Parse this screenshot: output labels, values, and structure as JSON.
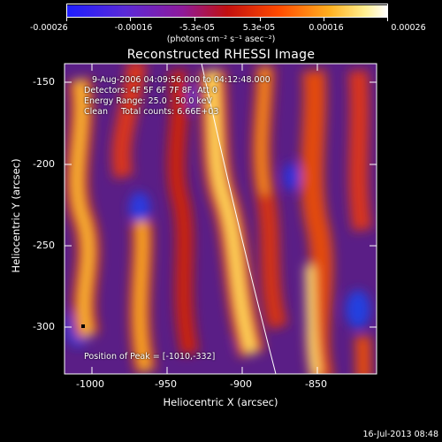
{
  "colorbar": {
    "ticks": [
      "-0.00026",
      "-0.00016",
      "-5.3e-05",
      "5.3e-05",
      "0.00016",
      "0.00026"
    ],
    "units": "(photons cm⁻² s⁻¹ asec⁻²)",
    "colors": [
      "#1a1aff",
      "#6633cc",
      "#991199",
      "#cc2200",
      "#ff6600",
      "#ffcc33",
      "#ffffff"
    ]
  },
  "title": "Reconstructed RHESSI Image",
  "info": {
    "time": "9-Aug-2006 04:09:56.000 to 04:12:48.000",
    "detectors": "Detectors: 4F 5F 6F 7F 8F, Att 0",
    "energy": "Energy Range: 25.0 - 50.0 keV",
    "clean": "Clean     Total counts: 6.66E+03"
  },
  "peak": "Position of Peak = [-1010,-332]",
  "axes": {
    "xlabel": "Heliocentric X (arcsec)",
    "ylabel": "Heliocentric Y (arcsec)",
    "xticks": [
      "-1000",
      "-950",
      "-900",
      "-850"
    ],
    "yticks": [
      "-150",
      "-200",
      "-250",
      "-300"
    ]
  },
  "timestamp": "16-Jul-2013 08:48"
}
